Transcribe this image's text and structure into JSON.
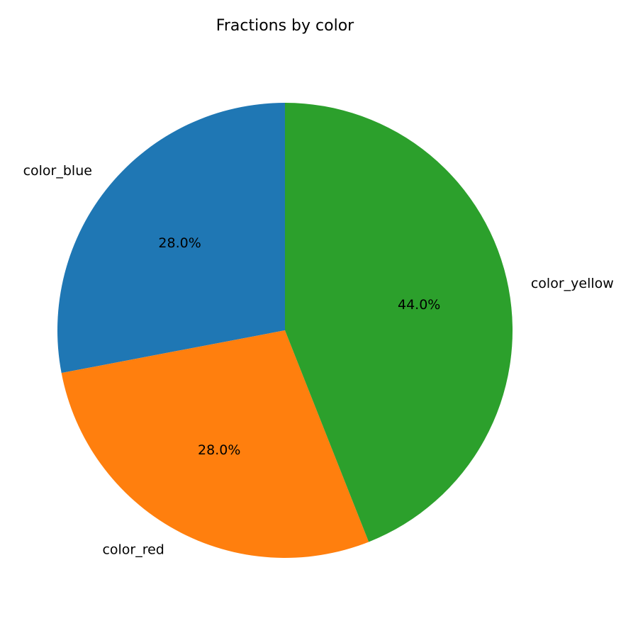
{
  "chart_data": {
    "type": "pie",
    "title": "Fractions by color",
    "categories": [
      "color_blue",
      "color_red",
      "color_yellow"
    ],
    "values": [
      28.0,
      28.0,
      44.0
    ],
    "percent_labels": [
      "28.0%",
      "28.0%",
      "44.0%"
    ],
    "colors": [
      "#1f77b4",
      "#ff7f0e",
      "#2ca02c"
    ],
    "start_angle_deg": 90,
    "direction": "counterclockwise",
    "legend": "none"
  }
}
